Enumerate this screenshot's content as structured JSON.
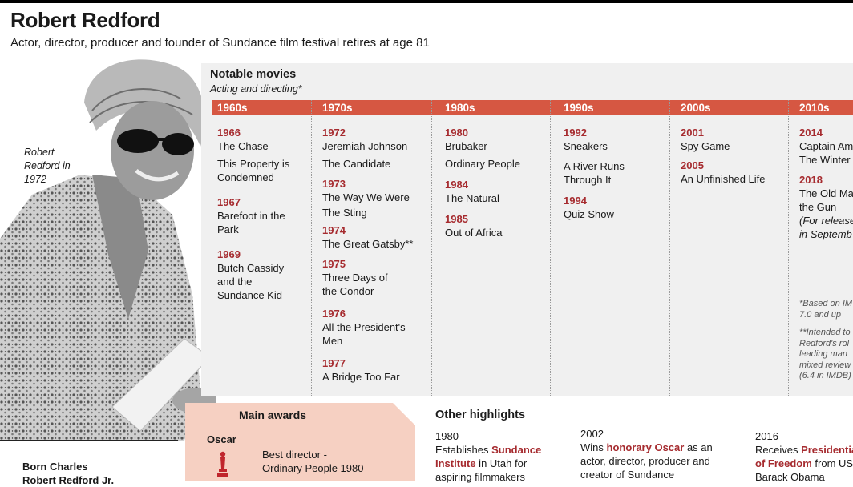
{
  "header": {
    "title": "Robert Redford",
    "subtitle": "Actor, director, producer and founder of Sundance film festival retires at age 81"
  },
  "photo": {
    "caption_line1": "Robert",
    "caption_line2": "Redford in",
    "caption_line3": "1972"
  },
  "movies": {
    "heading": "Notable movies",
    "subheading": "Acting and directing*",
    "decades": [
      "1960s",
      "1970s",
      "1980s",
      "1990s",
      "2000s",
      "2010s"
    ],
    "c1960": [
      {
        "year": "1966",
        "titles": [
          "The Chase",
          "This Property is",
          "Condemned"
        ]
      },
      {
        "year": "1967",
        "titles": [
          "Barefoot in the",
          "Park"
        ]
      },
      {
        "year": "1969",
        "titles": [
          "Butch Cassidy",
          "and the",
          "Sundance Kid"
        ]
      }
    ],
    "c1970": [
      {
        "year": "1972",
        "titles": [
          "Jeremiah Johnson",
          "The Candidate"
        ]
      },
      {
        "year": "1973",
        "titles": [
          "The Way We Were",
          "The Sting"
        ]
      },
      {
        "year": "1974",
        "titles": [
          "The Great Gatsby**"
        ]
      },
      {
        "year": "1975",
        "titles": [
          "Three Days of",
          "the Condor"
        ]
      },
      {
        "year": "1976",
        "titles": [
          "All the President's",
          "Men"
        ]
      },
      {
        "year": "1977",
        "titles": [
          "A Bridge Too Far"
        ]
      }
    ],
    "c1980": [
      {
        "year": "1980",
        "titles": [
          "Brubaker",
          "Ordinary People"
        ]
      },
      {
        "year": "1984",
        "titles": [
          "The Natural"
        ]
      },
      {
        "year": "1985",
        "titles": [
          "Out of Africa"
        ]
      }
    ],
    "c1990": [
      {
        "year": "1992",
        "titles": [
          "Sneakers",
          "A River Runs",
          "Through It"
        ]
      },
      {
        "year": "1994",
        "titles": [
          "Quiz Show"
        ]
      }
    ],
    "c2000": [
      {
        "year": "2001",
        "titles": [
          "Spy Game"
        ]
      },
      {
        "year": "2005",
        "titles": [
          "An Unfinished Life"
        ]
      }
    ],
    "c2010": [
      {
        "year": "2014",
        "titles": [
          "Captain Am",
          "The Winter"
        ]
      },
      {
        "year": "2018",
        "titles": [
          "The Old Ma",
          "the Gun"
        ],
        "note": [
          "(For release",
          "in Septemb"
        ]
      }
    ],
    "footnote1": [
      "*Based on IM",
      "7.0 and up"
    ],
    "footnote2": [
      "**Intended to",
      "Redford's rol",
      "leading man",
      "mixed review",
      "(6.4 in IMDB)"
    ]
  },
  "awards": {
    "title": "Main awards",
    "category": "Oscar",
    "line1": "Best director -",
    "line2": "Ordinary People 1980"
  },
  "highlights": {
    "title": "Other highlights",
    "h1": {
      "year": "1980",
      "pre": "Establishes ",
      "acc1": "Sundance",
      "acc2": "Institute",
      "mid": " in Utah for",
      "end": "aspiring filmmakers"
    },
    "h2": {
      "year": "2002",
      "pre": "Wins ",
      "acc": "honorary Oscar",
      "mid": " as an",
      "line3": "actor, director, producer and",
      "line4": "creator of Sundance"
    },
    "h3": {
      "year": "2016",
      "pre": "Receives ",
      "acc1": "Presidentia",
      "acc2": "of Freedom",
      "mid": " from US",
      "end": "Barack Obama"
    }
  },
  "born": {
    "line1": "Born Charles",
    "line2": "Robert Redford Jr."
  },
  "colors": {
    "accent": "#d65742",
    "year": "#a62b2f",
    "awards_bg": "#f6d0c2",
    "panel_bg": "#f0f0f0"
  }
}
